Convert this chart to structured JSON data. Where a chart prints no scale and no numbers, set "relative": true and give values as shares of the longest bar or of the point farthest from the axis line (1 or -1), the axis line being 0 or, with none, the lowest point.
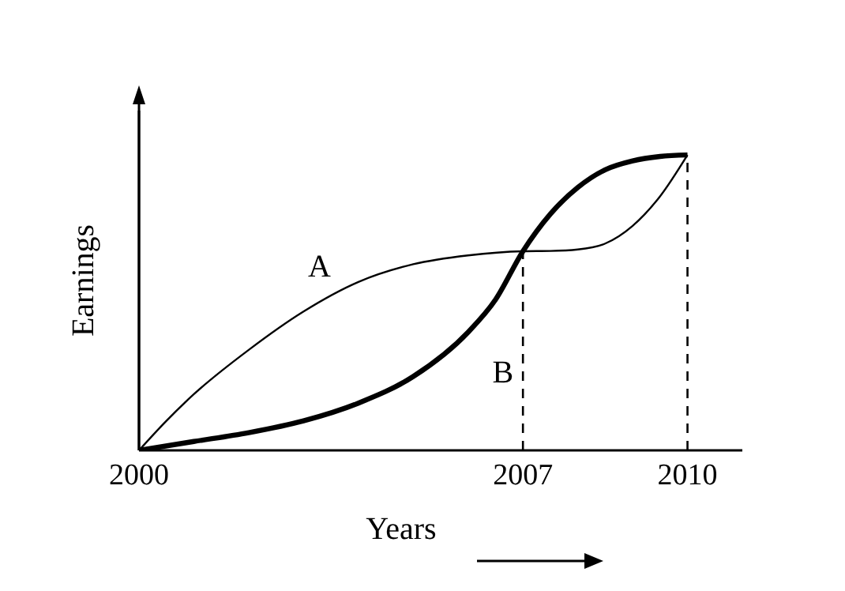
{
  "chart_data": {
    "type": "line",
    "relative": true,
    "xlabel": "Years",
    "ylabel": "Earnings",
    "xlim": [
      2000,
      2011
    ],
    "xticks": [
      2000,
      2007,
      2010
    ],
    "series": [
      {
        "name": "A",
        "color": "#000000",
        "x": [
          2000,
          2000.5,
          2001,
          2002,
          2003,
          2004,
          2005,
          2006,
          2007,
          2007.5,
          2008,
          2008.5,
          2009,
          2009.5,
          2010
        ],
        "values": [
          0,
          0.1,
          0.19,
          0.34,
          0.47,
          0.57,
          0.63,
          0.66,
          0.674,
          0.675,
          0.68,
          0.7,
          0.76,
          0.86,
          1
        ]
      },
      {
        "name": "B",
        "color": "#000000",
        "x": [
          2000,
          2001,
          2002,
          2003,
          2004,
          2005,
          2006,
          2006.5,
          2007,
          2007.5,
          2008,
          2008.5,
          2009,
          2009.5,
          2010
        ],
        "values": [
          0,
          0.03,
          0.06,
          0.1,
          0.16,
          0.25,
          0.4,
          0.51,
          0.674,
          0.8,
          0.89,
          0.95,
          0.98,
          0.995,
          1
        ]
      }
    ],
    "ref_lines": [
      {
        "axis": "x",
        "value": 2007,
        "line_style": "dashed"
      },
      {
        "axis": "x",
        "value": 2010,
        "line_style": "dashed"
      }
    ]
  }
}
